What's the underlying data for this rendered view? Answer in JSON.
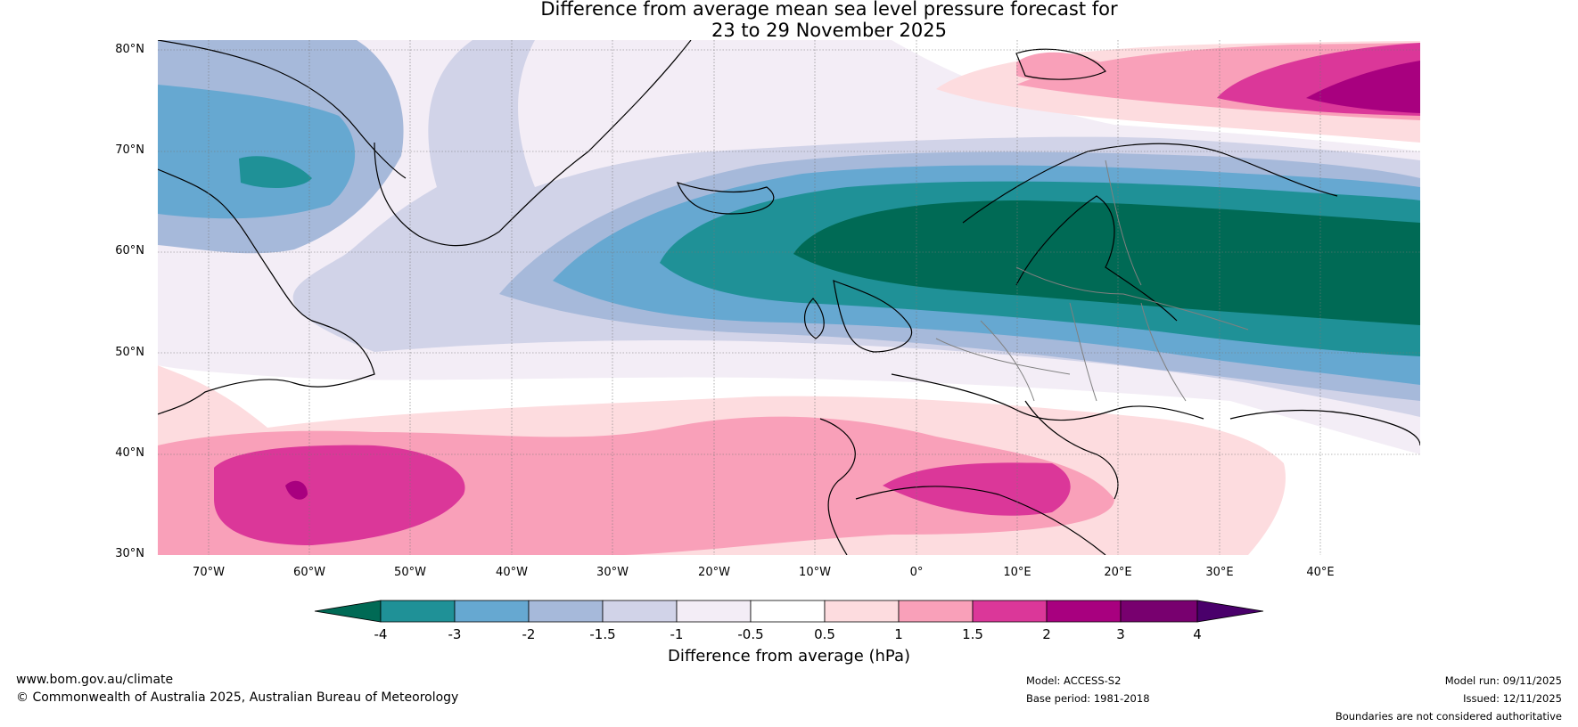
{
  "title_line1": "Difference from average mean sea level pressure forecast for",
  "title_line2": "23 to 29 November 2025",
  "lat_labels": [
    "80°N",
    "70°N",
    "60°N",
    "50°N",
    "40°N",
    "30°N"
  ],
  "lon_labels": [
    "70°W",
    "60°W",
    "50°W",
    "40°W",
    "30°W",
    "20°W",
    "10°W",
    "0°",
    "10°E",
    "20°E",
    "30°E",
    "40°E"
  ],
  "colorbar": {
    "title": "Difference from average (hPa)",
    "ticks": [
      "-4",
      "-3",
      "-2",
      "-1.5",
      "-1",
      "-0.5",
      "0.5",
      "1",
      "1.5",
      "2",
      "3",
      "4"
    ],
    "colors": {
      "below_min": "#006a55",
      "bins": [
        "#1f9197",
        "#66a8d1",
        "#a6b9da",
        "#d1d3e8",
        "#f3edf6",
        "#ffffff",
        "#fddcdf",
        "#f9a0b9",
        "#db3799",
        "#a8007f",
        "#78006f"
      ],
      "above_max": "#4a006b"
    }
  },
  "footer": {
    "website": "www.bom.gov.au/climate",
    "copyright": "© Commonwealth of Australia 2025, Australian Bureau of Meteorology",
    "model": "Model: ACCESS-S2",
    "base_period": "Base period: 1981-2018",
    "model_run": "Model run: 09/11/2025",
    "issued": "Issued: 12/11/2025",
    "disclaimer": "Boundaries are not considered authoritative"
  }
}
